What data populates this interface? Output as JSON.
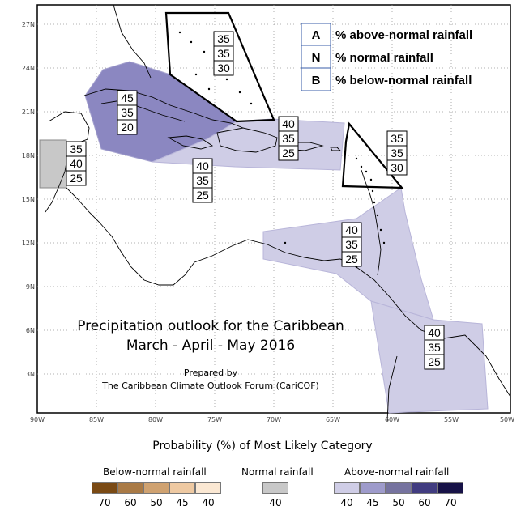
{
  "map": {
    "lat_ticks": [
      "27N",
      "24N",
      "21N",
      "18N",
      "15N",
      "12N",
      "9N",
      "6N",
      "3N"
    ],
    "lon_ticks": [
      "90W",
      "85W",
      "80W",
      "75W",
      "70W",
      "65W",
      "60W",
      "55W",
      "50W"
    ],
    "title_line1": "Precipitation outlook for the Caribbean",
    "title_line2": "March - April - May 2016",
    "prepared_by": "Prepared by",
    "prepared_org": "The Caribbean Climate Outlook Forum (CariCOF)",
    "regions": [
      {
        "A": "35",
        "N": "35",
        "B": "30"
      },
      {
        "A": "45",
        "N": "35",
        "B": "20"
      },
      {
        "A": "35",
        "N": "40",
        "B": "25"
      },
      {
        "A": "40",
        "N": "35",
        "B": "25"
      },
      {
        "A": "40",
        "N": "35",
        "B": "25"
      },
      {
        "A": "35",
        "N": "35",
        "B": "30"
      },
      {
        "A": "40",
        "N": "35",
        "B": "25"
      },
      {
        "A": "40",
        "N": "35",
        "B": "25"
      }
    ]
  },
  "key": {
    "A": {
      "letter": "A",
      "text": "% above-normal rainfall"
    },
    "N": {
      "letter": "N",
      "text": "% normal rainfall"
    },
    "B": {
      "letter": "B",
      "text": "% below-normal rainfall"
    }
  },
  "legend": {
    "title": "Probability (%) of Most Likely Category",
    "below_title": "Below-normal rainfall",
    "normal_title": "Normal rainfall",
    "above_title": "Above-normal rainfall",
    "below_labels": [
      "70",
      "60",
      "50",
      "45",
      "40"
    ],
    "normal_labels": [
      "40"
    ],
    "above_labels": [
      "40",
      "45",
      "50",
      "60",
      "70"
    ],
    "below_colors": [
      "#7a4a14",
      "#a97a46",
      "#cfa271",
      "#eec9a2",
      "#fbe8d3"
    ],
    "normal_colors": [
      "#c8c8c8"
    ],
    "above_colors": [
      "#cfcde6",
      "#9e9bcb",
      "#76739f",
      "#413c80",
      "#171247"
    ]
  }
}
